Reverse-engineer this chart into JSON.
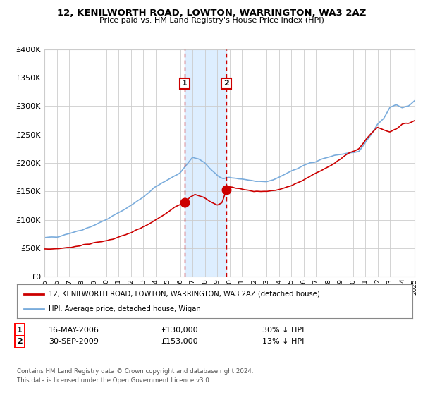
{
  "title": "12, KENILWORTH ROAD, LOWTON, WARRINGTON, WA3 2AZ",
  "subtitle": "Price paid vs. HM Land Registry's House Price Index (HPI)",
  "legend_line1": "12, KENILWORTH ROAD, LOWTON, WARRINGTON, WA3 2AZ (detached house)",
  "legend_line2": "HPI: Average price, detached house, Wigan",
  "sale1_date": "16-MAY-2006",
  "sale1_price": "£130,000",
  "sale1_hpi": "30% ↓ HPI",
  "sale1_year": 2006.37,
  "sale1_value": 130000,
  "sale2_date": "30-SEP-2009",
  "sale2_price": "£153,000",
  "sale2_hpi": "13% ↓ HPI",
  "sale2_year": 2009.75,
  "sale2_value": 153000,
  "footnote1": "Contains HM Land Registry data © Crown copyright and database right 2024.",
  "footnote2": "This data is licensed under the Open Government Licence v3.0.",
  "ylim": [
    0,
    400000
  ],
  "yticks": [
    0,
    50000,
    100000,
    150000,
    200000,
    250000,
    300000,
    350000,
    400000
  ],
  "red_color": "#cc0000",
  "blue_color": "#7aacdc",
  "shade_color": "#ddeeff",
  "vline_color": "#cc0000",
  "background_color": "#ffffff",
  "grid_color": "#cccccc"
}
